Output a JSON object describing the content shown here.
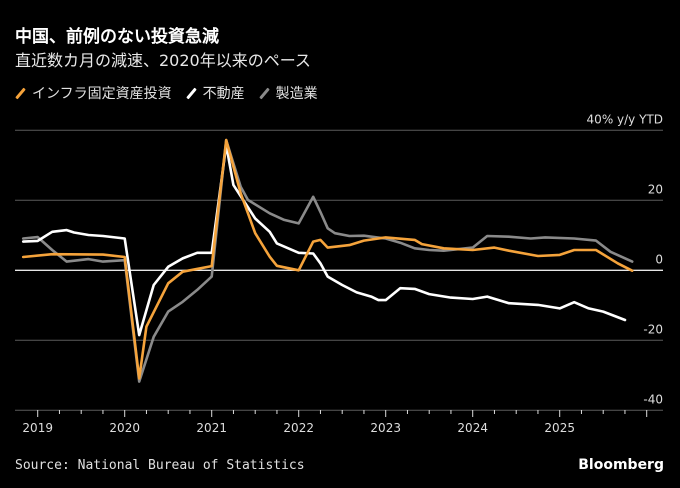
{
  "header": {
    "title": "中国、前例のない投資急減",
    "subtitle": "直近数カ月の減速、2020年以来のペース"
  },
  "legend": [
    {
      "label": "インフラ固定資産投資",
      "color": "#f5a33b"
    },
    {
      "label": "不動産",
      "color": "#ffffff"
    },
    {
      "label": "製造業",
      "color": "#8a8a8a"
    }
  ],
  "footer": {
    "source": "Source: National Bureau of Statistics",
    "brand": "Bloomberg"
  },
  "chart_data": {
    "type": "line",
    "title": "中国、前例のない投資急減",
    "subtitle": "直近数カ月の減速、2020年以来のペース",
    "ylabel": "40% y/y YTD",
    "ylim": [
      -40,
      40
    ],
    "yticks": [
      {
        "value": 40,
        "label": "40% y/y YTD"
      },
      {
        "value": 20,
        "label": "20"
      },
      {
        "value": 0,
        "label": "0"
      },
      {
        "value": -20,
        "label": "-20"
      },
      {
        "value": -40,
        "label": "-40"
      }
    ],
    "xticks": [
      "2019",
      "2020",
      "2021",
      "2022",
      "2023",
      "2024",
      "2025"
    ],
    "xlim": [
      "2018-10",
      "2025-10"
    ],
    "grid": true,
    "legend_position": "top-left",
    "series": [
      {
        "name": "製造業",
        "color": "#8a8a8a",
        "points": [
          [
            "2018-10",
            9.1
          ],
          [
            "2018-12",
            9.5
          ],
          [
            "2019-02",
            5.8
          ],
          [
            "2019-04",
            2.5
          ],
          [
            "2019-07",
            3.2
          ],
          [
            "2019-09",
            2.5
          ],
          [
            "2019-12",
            2.9
          ],
          [
            "2020-02",
            -31.8
          ],
          [
            "2020-04",
            -19.0
          ],
          [
            "2020-06",
            -11.8
          ],
          [
            "2020-08",
            -9.0
          ],
          [
            "2020-10",
            -5.6
          ],
          [
            "2020-12",
            -1.8
          ],
          [
            "2021-02",
            37.2
          ],
          [
            "2021-04",
            23.9
          ],
          [
            "2021-05",
            20.1
          ],
          [
            "2021-08",
            16.3
          ],
          [
            "2021-10",
            14.4
          ],
          [
            "2021-12",
            13.4
          ],
          [
            "2022-02",
            21.0
          ],
          [
            "2022-03",
            16.7
          ],
          [
            "2022-04",
            12.0
          ],
          [
            "2022-05",
            10.6
          ],
          [
            "2022-07",
            9.8
          ],
          [
            "2022-09",
            9.9
          ],
          [
            "2022-12",
            9.1
          ],
          [
            "2023-02",
            7.9
          ],
          [
            "2023-04",
            6.3
          ],
          [
            "2023-06",
            5.8
          ],
          [
            "2023-08",
            5.6
          ],
          [
            "2023-12",
            6.5
          ],
          [
            "2024-02",
            9.8
          ],
          [
            "2024-05",
            9.6
          ],
          [
            "2024-08",
            9.1
          ],
          [
            "2024-10",
            9.4
          ],
          [
            "2025-02",
            9.1
          ],
          [
            "2025-05",
            8.5
          ],
          [
            "2025-07",
            5.3
          ],
          [
            "2025-10",
            2.5
          ]
        ]
      },
      {
        "name": "不動産",
        "color": "#ffffff",
        "points": [
          [
            "2018-10",
            8.2
          ],
          [
            "2018-12",
            8.4
          ],
          [
            "2019-02",
            11.0
          ],
          [
            "2019-04",
            11.5
          ],
          [
            "2019-05",
            10.8
          ],
          [
            "2019-07",
            10.1
          ],
          [
            "2019-09",
            9.8
          ],
          [
            "2019-12",
            9.1
          ],
          [
            "2020-02",
            -18.5
          ],
          [
            "2020-04",
            -4.2
          ],
          [
            "2020-06",
            1.0
          ],
          [
            "2020-08",
            3.4
          ],
          [
            "2020-10",
            5.0
          ],
          [
            "2020-12",
            5.0
          ],
          [
            "2021-02",
            35.8
          ],
          [
            "2021-03",
            24.4
          ],
          [
            "2021-06",
            14.8
          ],
          [
            "2021-08",
            11.0
          ],
          [
            "2021-09",
            7.7
          ],
          [
            "2021-12",
            5.0
          ],
          [
            "2022-02",
            4.8
          ],
          [
            "2022-03",
            2.0
          ],
          [
            "2022-04",
            -1.8
          ],
          [
            "2022-06",
            -4.2
          ],
          [
            "2022-08",
            -6.3
          ],
          [
            "2022-10",
            -7.5
          ],
          [
            "2022-11",
            -8.5
          ],
          [
            "2022-12",
            -8.5
          ],
          [
            "2023-02",
            -5.1
          ],
          [
            "2023-04",
            -5.3
          ],
          [
            "2023-06",
            -6.8
          ],
          [
            "2023-09",
            -7.8
          ],
          [
            "2023-12",
            -8.2
          ],
          [
            "2024-02",
            -7.5
          ],
          [
            "2024-05",
            -9.4
          ],
          [
            "2024-09",
            -9.9
          ],
          [
            "2024-12",
            -10.9
          ],
          [
            "2025-02",
            -9.1
          ],
          [
            "2025-04",
            -10.9
          ],
          [
            "2025-06",
            -11.8
          ],
          [
            "2025-09",
            -14.2
          ]
        ]
      },
      {
        "name": "インフラ固定資産投資",
        "color": "#f5a33b",
        "points": [
          [
            "2018-10",
            3.8
          ],
          [
            "2019-02",
            4.6
          ],
          [
            "2019-09",
            4.5
          ],
          [
            "2019-12",
            3.8
          ],
          [
            "2020-02",
            -30.9
          ],
          [
            "2020-03",
            -16.1
          ],
          [
            "2020-06",
            -3.7
          ],
          [
            "2020-08",
            -0.4
          ],
          [
            "2020-12",
            1.2
          ],
          [
            "2021-02",
            37.2
          ],
          [
            "2021-04",
            22.0
          ],
          [
            "2021-06",
            10.6
          ],
          [
            "2021-08",
            3.9
          ],
          [
            "2021-09",
            1.3
          ],
          [
            "2021-12",
            0.0
          ],
          [
            "2022-02",
            8.2
          ],
          [
            "2022-03",
            8.7
          ],
          [
            "2022-04",
            6.5
          ],
          [
            "2022-07",
            7.2
          ],
          [
            "2022-09",
            8.5
          ],
          [
            "2022-12",
            9.4
          ],
          [
            "2023-04",
            8.7
          ],
          [
            "2023-05",
            7.5
          ],
          [
            "2023-08",
            6.3
          ],
          [
            "2023-12",
            5.8
          ],
          [
            "2024-03",
            6.5
          ],
          [
            "2024-05",
            5.6
          ],
          [
            "2024-09",
            4.1
          ],
          [
            "2024-12",
            4.4
          ],
          [
            "2025-02",
            5.8
          ],
          [
            "2025-05",
            5.8
          ],
          [
            "2025-08",
            2.0
          ],
          [
            "2025-10",
            -0.1
          ]
        ]
      }
    ]
  }
}
